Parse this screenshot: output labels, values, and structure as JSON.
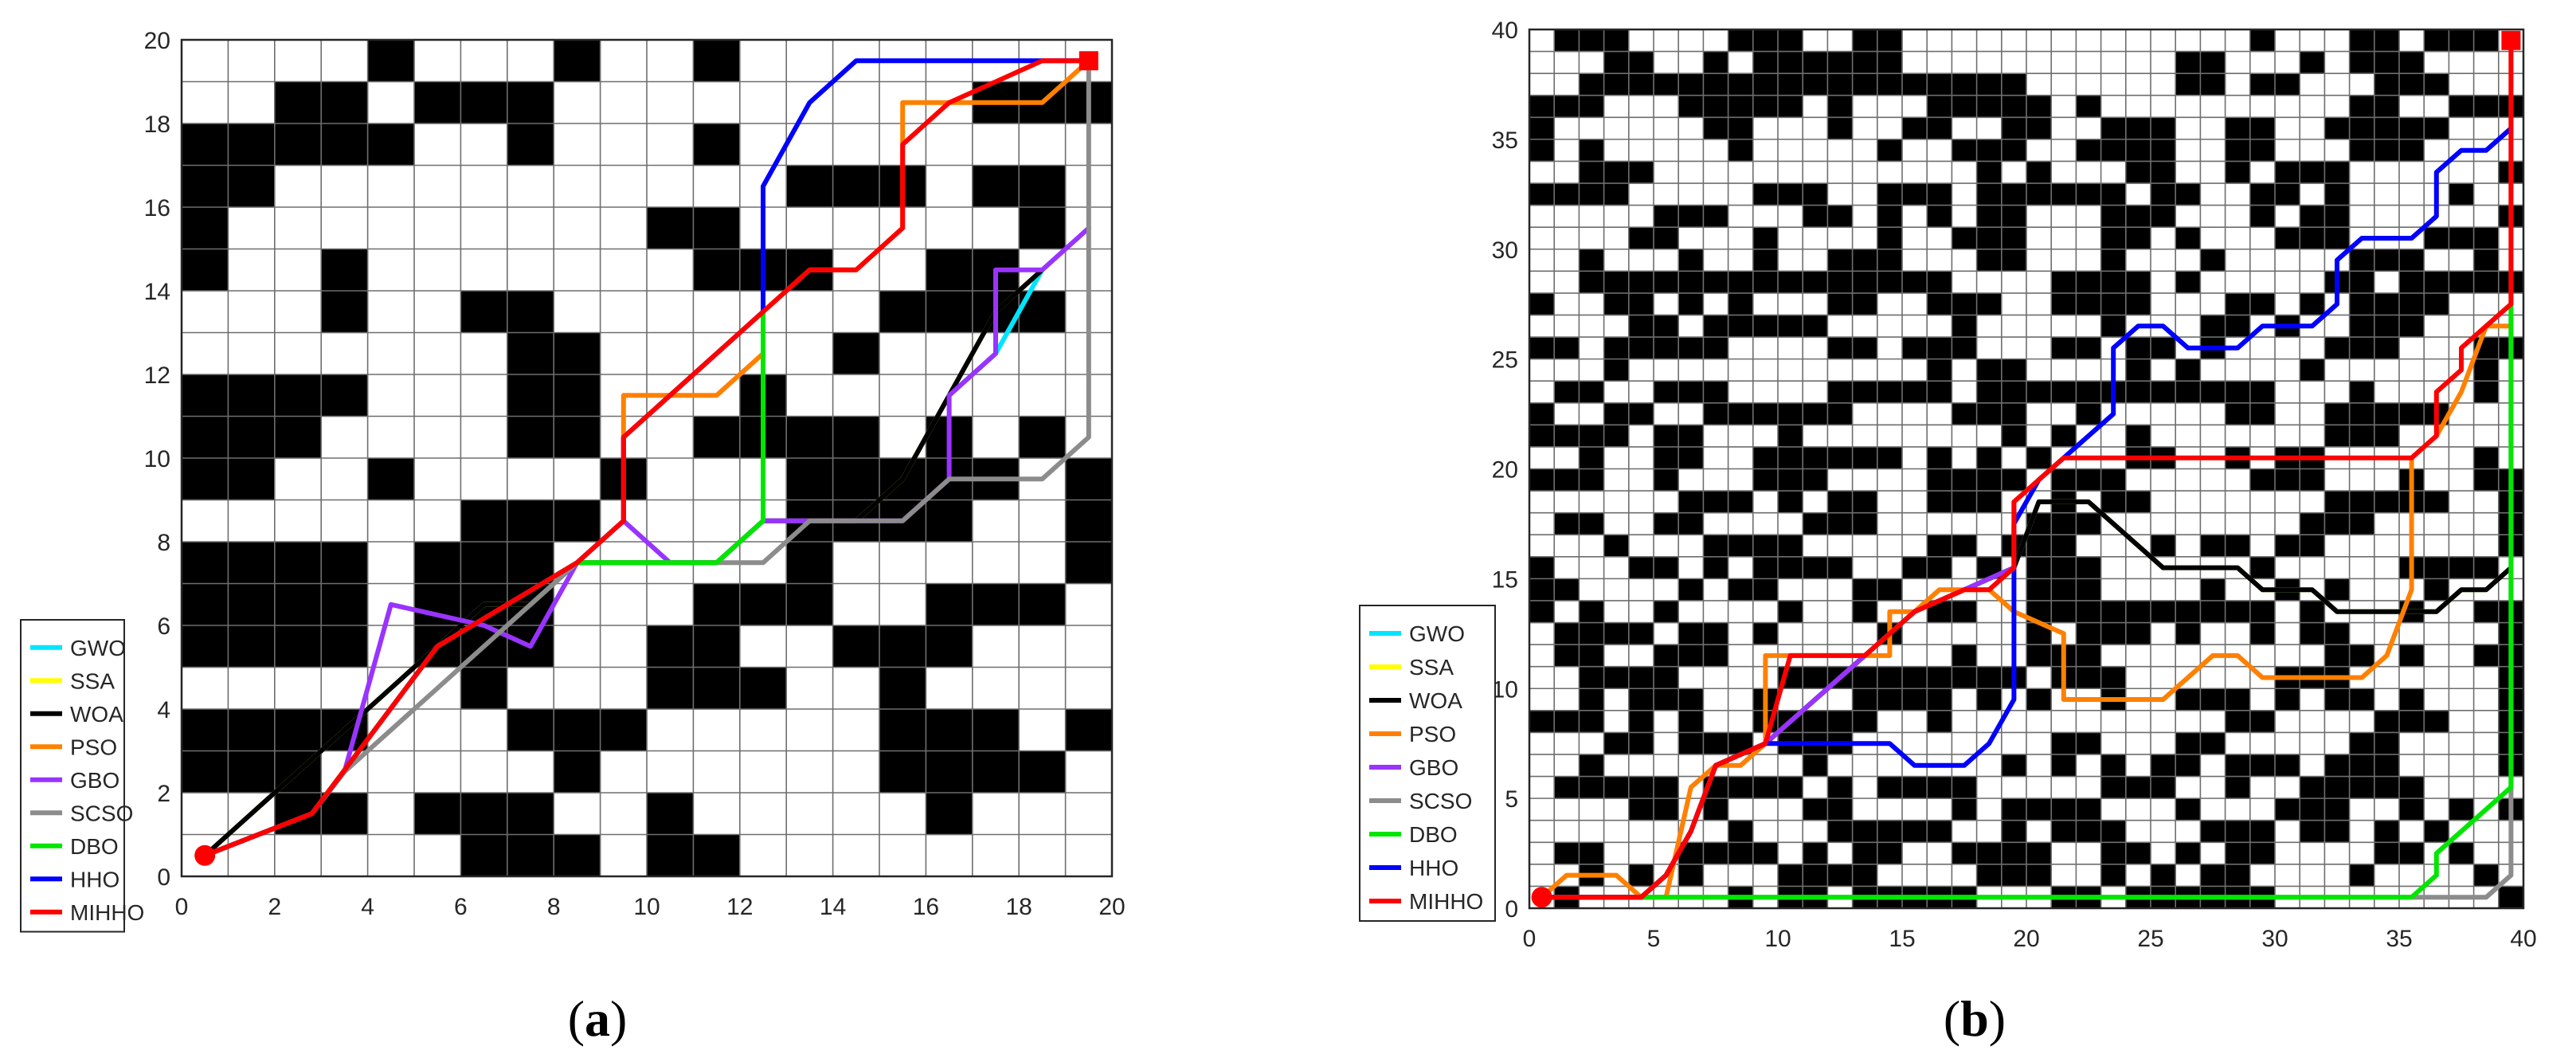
{
  "legend_items": [
    "GWO",
    "SSA",
    "WOA",
    "PSO",
    "GBO",
    "SCSO",
    "DBO",
    "HHO",
    "MIHHO"
  ],
  "colors": {
    "GWO": "#00e5ff",
    "SSA": "#ffff00",
    "WOA": "#000000",
    "PSO": "#ff8000",
    "GBO": "#9933ff",
    "SCSO": "#8c8c8c",
    "DBO": "#00e600",
    "HHO": "#0000ff",
    "MIHHO": "#ff0000",
    "obstacle": "#000000",
    "grid": "#6e6e6e"
  },
  "chart_data": [
    {
      "type": "line",
      "caption_open": "(",
      "caption_letter": "a",
      "caption_close": ")",
      "title": "",
      "xlabel": "",
      "ylabel": "",
      "xlim": [
        0,
        20
      ],
      "ylim": [
        0,
        20
      ],
      "xticks": [
        "0",
        "2",
        "4",
        "6",
        "8",
        "10",
        "12",
        "14",
        "16",
        "18",
        "20"
      ],
      "yticks": [
        "0",
        "2",
        "4",
        "6",
        "8",
        "10",
        "12",
        "14",
        "16",
        "18",
        "20"
      ],
      "grid": true,
      "legend_position": "bottom-left",
      "grid_size": 20,
      "start": [
        0.5,
        0.5
      ],
      "goal": [
        19.5,
        19.5
      ],
      "obstacle_rows_top_to_bottom": [
        "....1...1..1........",
        "..11.111.........111",
        "11111..1...1........",
        "11...........111.11.",
        "1.........11......1.",
        "1..1.......111..11..",
        "...1..11.......1111.",
        ".......11.....1.....",
        "1111...11...1.......",
        "111....11..1111.1.1.",
        "11..1....1...11111.1",
        "......111....1111..1",
        "1111.111.....1.....1",
        "1111.111...111..111.",
        "1111.111..11..111...",
        "......1...111..1....",
        "1111...111.....111.1",
        "111.....1......1111.",
        "..11.111..1.....1...",
        "......111.11........"
      ],
      "series": [
        {
          "name": "GWO",
          "x": [
            0.5,
            1.5,
            2.5,
            3.5,
            4.5,
            5.5,
            6.5,
            7.5,
            8.5,
            9.5,
            10.5,
            11.5,
            12.5,
            13.5,
            14.5,
            15.5,
            16.5,
            17.5,
            18.5
          ],
          "y": [
            0.5,
            1.5,
            2.5,
            3.5,
            4.5,
            5.5,
            6.5,
            6.5,
            7.5,
            7.5,
            7.5,
            7.5,
            8.5,
            8.5,
            8.5,
            9.5,
            11.5,
            12.5,
            14.5
          ]
        },
        {
          "name": "SSA",
          "x": [
            0.5,
            1.5,
            2.5,
            3.5,
            4.5,
            5.5,
            6.5,
            7.5,
            8.5,
            9.5,
            10.5,
            11.5,
            12.5,
            13.5,
            14.5,
            15.5,
            16.5,
            17.5,
            18.5
          ],
          "y": [
            0.5,
            1.5,
            2.5,
            3.5,
            4.5,
            5.5,
            6.5,
            6.5,
            7.5,
            7.5,
            7.5,
            7.5,
            8.5,
            8.5,
            8.5,
            9.5,
            11.5,
            13.5,
            14.5
          ]
        },
        {
          "name": "WOA",
          "x": [
            0.5,
            1.5,
            2.5,
            3.5,
            4.5,
            5.5,
            6.5,
            7.5,
            8.5,
            9.5,
            10.5,
            11.5,
            12.5,
            13.5,
            14.5,
            15.5,
            16.5,
            17.5,
            18.5
          ],
          "y": [
            0.5,
            1.5,
            2.5,
            3.5,
            4.5,
            5.5,
            6.5,
            6.5,
            7.5,
            7.5,
            7.5,
            7.5,
            8.5,
            8.5,
            8.5,
            9.5,
            11.5,
            13.5,
            14.5
          ]
        },
        {
          "name": "PSO",
          "x": [
            0.5,
            2.8,
            5.5,
            8.5,
            9.5,
            9.5,
            11.5,
            12.5,
            12.5,
            13.5,
            14.5,
            15.5,
            15.5,
            16.5,
            17.5,
            18.5,
            19.5
          ],
          "y": [
            0.5,
            1.5,
            5.5,
            7.5,
            8.5,
            11.5,
            11.5,
            12.5,
            13.5,
            14.5,
            14.5,
            15.5,
            18.5,
            18.5,
            18.5,
            18.5,
            19.5
          ]
        },
        {
          "name": "GBO",
          "x": [
            0.5,
            2.8,
            3.5,
            4.5,
            6.5,
            7.5,
            8.5,
            9.5,
            10.5,
            11.5,
            12.5,
            13.5,
            14.5,
            15.5,
            16.5,
            16.5,
            17.5,
            17.5,
            18.5,
            19.5
          ],
          "y": [
            0.5,
            1.5,
            2.5,
            6.5,
            6.0,
            5.5,
            7.5,
            8.5,
            7.5,
            7.5,
            8.5,
            8.5,
            8.5,
            8.5,
            9.5,
            11.5,
            12.5,
            14.5,
            14.5,
            15.5
          ]
        },
        {
          "name": "SCSO",
          "x": [
            0.5,
            2.8,
            3.5,
            5.5,
            7.5,
            8.5,
            9.5,
            10.5,
            11.5,
            12.5,
            13.5,
            14.5,
            15.5,
            16.5,
            17.5,
            18.5,
            19.5,
            19.5
          ],
          "y": [
            0.5,
            1.5,
            2.5,
            4.5,
            6.5,
            7.5,
            7.5,
            7.5,
            7.5,
            7.5,
            8.5,
            8.5,
            8.5,
            9.5,
            9.5,
            9.5,
            10.5,
            19.5
          ]
        },
        {
          "name": "DBO",
          "x": [
            0.5,
            2.8,
            5.5,
            8.5,
            9.5,
            10.5,
            11.5,
            12.5,
            12.5,
            12.5
          ],
          "y": [
            0.5,
            1.5,
            5.5,
            7.5,
            7.5,
            7.5,
            7.5,
            8.5,
            12.5,
            13.5
          ]
        },
        {
          "name": "HHO",
          "x": [
            0.5,
            2.8,
            5.5,
            8.5,
            9.5,
            9.5,
            11.5,
            12.5,
            12.5,
            13.5,
            14.5,
            18.5,
            19.5
          ],
          "y": [
            0.5,
            1.5,
            5.5,
            7.5,
            8.5,
            10.5,
            12.5,
            13.5,
            16.5,
            18.5,
            19.5,
            19.5,
            19.5
          ]
        },
        {
          "name": "MIHHO",
          "x": [
            0.5,
            2.8,
            5.5,
            8.5,
            9.5,
            9.5,
            11.5,
            12.5,
            13.5,
            14.5,
            15.5,
            15.5,
            16.5,
            18.5,
            19.5
          ],
          "y": [
            0.5,
            1.5,
            5.5,
            7.5,
            8.5,
            10.5,
            12.5,
            13.5,
            14.5,
            14.5,
            15.5,
            17.5,
            18.5,
            19.5,
            19.5
          ]
        }
      ]
    },
    {
      "type": "line",
      "caption_open": "(",
      "caption_letter": "b",
      "caption_close": ")",
      "title": "",
      "xlabel": "",
      "ylabel": "",
      "xlim": [
        0,
        40
      ],
      "ylim": [
        0,
        40
      ],
      "xticks": [
        "0",
        "5",
        "10",
        "15",
        "20",
        "25",
        "30",
        "35",
        "40"
      ],
      "yticks": [
        "0",
        "5",
        "10",
        "15",
        "20",
        "25",
        "30",
        "35",
        "40"
      ],
      "grid": true,
      "legend_position": "bottom-left",
      "grid_size": 40,
      "start": [
        0.5,
        0.5
      ],
      "goal": [
        39.5,
        39.5
      ],
      "obstacle_seed": 7,
      "obstacle_density": 0.38,
      "series": [
        {
          "name": "GWO",
          "x": [
            0.5,
            4.5,
            5.5,
            6.5,
            7.5,
            9.5,
            13.5,
            15.5,
            17.5,
            19.5,
            20.5,
            22.5,
            23.5,
            25.5,
            28.5,
            29.5,
            31.5,
            32.5,
            33.5,
            36.5,
            37.5,
            38.5,
            39.5
          ],
          "y": [
            0.5,
            0.5,
            1.5,
            3.5,
            6.5,
            7.5,
            11.5,
            13.5,
            14.5,
            15.5,
            18.5,
            18.5,
            17.5,
            15.5,
            15.5,
            14.5,
            14.5,
            13.5,
            13.5,
            13.5,
            14.5,
            14.5,
            15.5
          ]
        },
        {
          "name": "SSA",
          "x": [
            0.5,
            4.5,
            5.5,
            6.5,
            7.5,
            9.5,
            13.5,
            15.5,
            17.5,
            19.5,
            20.5,
            22.5,
            23.5,
            25.5,
            28.5,
            29.5,
            31.5,
            32.5,
            33.5,
            36.5,
            37.5,
            38.5,
            39.5
          ],
          "y": [
            0.5,
            0.5,
            1.5,
            3.5,
            6.5,
            7.5,
            11.5,
            13.5,
            14.5,
            15.5,
            18.5,
            18.5,
            17.5,
            15.5,
            15.5,
            14.5,
            14.5,
            13.5,
            13.5,
            13.5,
            14.5,
            14.5,
            15.5
          ]
        },
        {
          "name": "WOA",
          "x": [
            0.5,
            4.5,
            5.5,
            6.5,
            7.5,
            9.5,
            13.5,
            15.5,
            17.5,
            19.5,
            20.5,
            22.5,
            23.5,
            25.5,
            28.5,
            29.5,
            31.5,
            32.5,
            33.5,
            36.5,
            37.5,
            38.5,
            39.5
          ],
          "y": [
            0.5,
            0.5,
            1.5,
            3.5,
            6.5,
            7.5,
            11.5,
            13.5,
            14.5,
            15.5,
            18.5,
            18.5,
            17.5,
            15.5,
            15.5,
            14.5,
            14.5,
            13.5,
            13.5,
            13.5,
            14.5,
            14.5,
            15.5
          ]
        },
        {
          "name": "PSO",
          "x": [
            0.5,
            1.5,
            3.5,
            4.5,
            5.5,
            6.5,
            7.5,
            8.5,
            9.5,
            9.5,
            10.5,
            14.5,
            14.5,
            15.5,
            16.5,
            18.5,
            19.5,
            21.5,
            21.5,
            22.5,
            25.5,
            26.5,
            27.5,
            28.5,
            29.5,
            33.5,
            34.5,
            35.5,
            35.5,
            36.5,
            37.5,
            38.5,
            39.5
          ],
          "y": [
            0.5,
            1.5,
            1.5,
            0.5,
            0.5,
            5.5,
            6.5,
            6.5,
            7.5,
            11.5,
            11.5,
            11.5,
            13.5,
            13.5,
            14.5,
            14.5,
            13.5,
            12.5,
            9.5,
            9.5,
            9.5,
            10.5,
            11.5,
            11.5,
            10.5,
            10.5,
            11.5,
            14.5,
            20.5,
            21.5,
            23.5,
            26.5,
            26.5
          ]
        },
        {
          "name": "GBO",
          "x": [
            0.5,
            4.5,
            5.5,
            6.5,
            7.5,
            9.5,
            13.5,
            15.5,
            17.5,
            19.5,
            19.5
          ],
          "y": [
            0.5,
            0.5,
            1.5,
            3.5,
            6.5,
            7.5,
            11.5,
            13.5,
            14.5,
            15.5,
            18.5
          ]
        },
        {
          "name": "SCSO",
          "x": [
            0.5,
            36.5,
            37.5,
            38.5,
            39.5,
            39.5
          ],
          "y": [
            0.5,
            0.5,
            0.5,
            0.5,
            1.5,
            39.5
          ]
        },
        {
          "name": "DBO",
          "x": [
            0.5,
            35.5,
            36.5,
            36.5,
            37.5,
            38.5,
            39.5,
            39.5
          ],
          "y": [
            0.5,
            0.5,
            1.5,
            2.5,
            3.5,
            4.5,
            5.5,
            27.5
          ]
        },
        {
          "name": "HHO",
          "x": [
            0.5,
            4.5,
            5.5,
            6.5,
            7.5,
            9.5,
            14.5,
            15.5,
            17.5,
            18.5,
            19.5,
            19.5,
            20.5,
            21.5,
            22.5,
            23.5,
            23.5,
            24.5,
            25.5,
            26.5,
            28.5,
            29.5,
            31.5,
            32.5,
            32.5,
            33.5,
            35.5,
            36.5,
            36.5,
            37.5,
            38.5,
            39.5
          ],
          "y": [
            0.5,
            0.5,
            1.5,
            3.5,
            6.5,
            7.5,
            7.5,
            6.5,
            6.5,
            7.5,
            9.5,
            17.5,
            19.5,
            20.5,
            21.5,
            22.5,
            25.5,
            26.5,
            26.5,
            25.5,
            25.5,
            26.5,
            26.5,
            27.5,
            29.5,
            30.5,
            30.5,
            31.5,
            33.5,
            34.5,
            34.5,
            35.5
          ]
        },
        {
          "name": "MIHHO",
          "x": [
            0.5,
            4.5,
            5.5,
            6.5,
            7.5,
            9.5,
            10.5,
            13.5,
            15.5,
            17.5,
            18.5,
            19.5,
            19.5,
            20.5,
            21.5,
            35.5,
            36.5,
            36.5,
            37.5,
            37.5,
            38.5,
            39.5,
            39.5
          ],
          "y": [
            0.5,
            0.5,
            1.5,
            3.5,
            6.5,
            7.5,
            11.5,
            11.5,
            13.5,
            14.5,
            14.5,
            15.5,
            18.5,
            19.5,
            20.5,
            20.5,
            21.5,
            23.5,
            24.5,
            25.5,
            26.5,
            27.5,
            39.5
          ]
        }
      ]
    }
  ]
}
